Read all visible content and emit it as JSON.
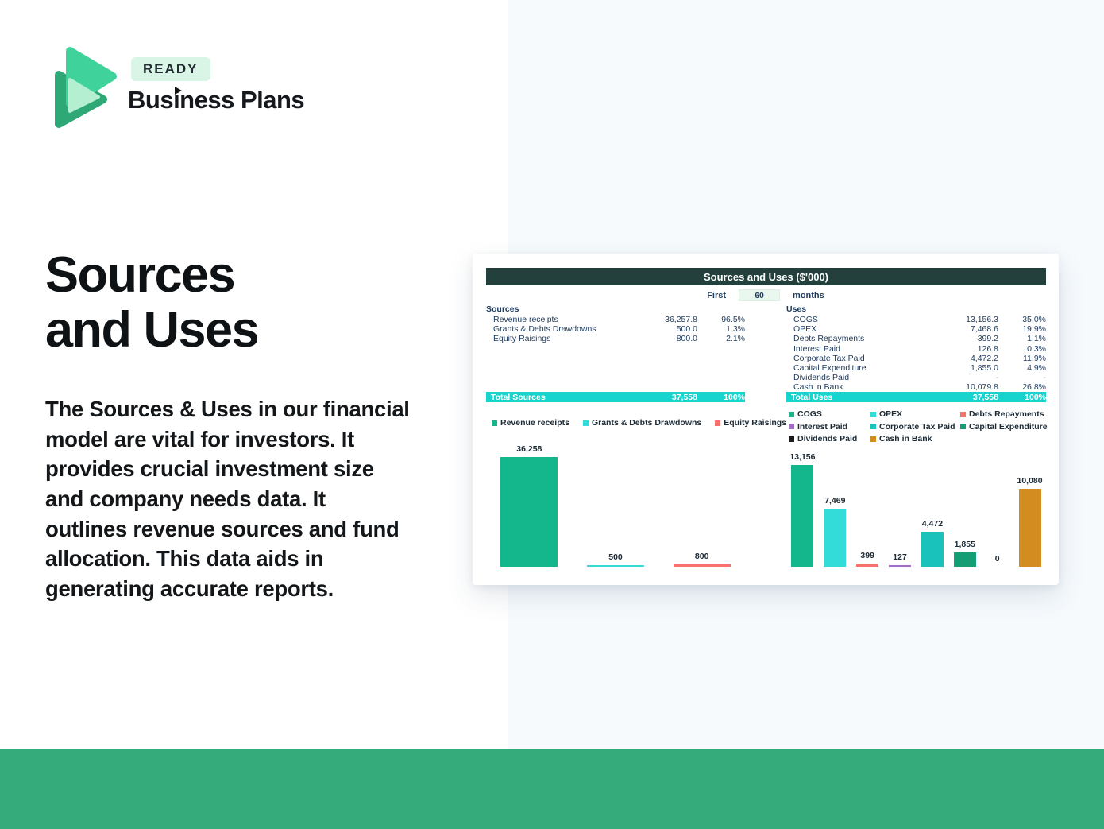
{
  "page": {
    "right_panel_bg": "#f6fafd",
    "bottom_band_color": "#35ab7c"
  },
  "brand": {
    "badge": "READY",
    "name": "Business Plans",
    "logo_colors": {
      "back": "#2fa878",
      "front": "#3fd29a",
      "overlap": "#b5efd2",
      "badge_bg": "#d8f5e6"
    }
  },
  "hero": {
    "title_line1": "Sources",
    "title_line2": "and Uses",
    "description": "The Sources & Uses in our financial model are vital for investors. It provides crucial investment size and company needs data. It outlines revenue sources and fund allocation. This data aids in generating accurate reports."
  },
  "card": {
    "header": "Sources and Uses ($'000)",
    "period": {
      "prefix": "First",
      "value": "60",
      "suffix": "months"
    },
    "accent_total_bg": "#17d4cf",
    "header_bg": "#24403c",
    "sources_table": {
      "title": "Sources",
      "rows": [
        {
          "label": "Revenue receipts",
          "value": "36,257.8",
          "pct": "96.5%"
        },
        {
          "label": "Grants & Debts Drawdowns",
          "value": "500.0",
          "pct": "1.3%"
        },
        {
          "label": "Equity Raisings",
          "value": "800.0",
          "pct": "2.1%"
        }
      ],
      "total": {
        "label": "Total Sources",
        "value": "37,558",
        "pct": "100%"
      }
    },
    "uses_table": {
      "title": "Uses",
      "rows": [
        {
          "label": "COGS",
          "value": "13,156.3",
          "pct": "35.0%"
        },
        {
          "label": "OPEX",
          "value": "7,468.6",
          "pct": "19.9%"
        },
        {
          "label": "Debts Repayments",
          "value": "399.2",
          "pct": "1.1%"
        },
        {
          "label": "Interest Paid",
          "value": "126.8",
          "pct": "0.3%"
        },
        {
          "label": "Corporate Tax Paid",
          "value": "4,472.2",
          "pct": "11.9%"
        },
        {
          "label": "Capital Expenditure",
          "value": "1,855.0",
          "pct": "4.9%"
        },
        {
          "label": "Dividends Paid",
          "value": "-",
          "pct": "-"
        },
        {
          "label": "Cash in Bank",
          "value": "10,079.8",
          "pct": "26.8%"
        }
      ],
      "total": {
        "label": "Total Uses",
        "value": "37,558",
        "pct": "100%"
      }
    }
  },
  "chart_data": [
    {
      "type": "bar",
      "title": "Sources",
      "categories": [
        "Revenue receipts",
        "Grants & Debts Drawdowns",
        "Equity Raisings"
      ],
      "values": [
        36258,
        500,
        800
      ],
      "labels": [
        "36,258",
        "500",
        "800"
      ],
      "colors": [
        "#14b78c",
        "#33dbd9",
        "#f8716d"
      ],
      "ylim": [
        0,
        36258
      ],
      "grid": false,
      "legend_position": "top"
    },
    {
      "type": "bar",
      "title": "Uses",
      "categories": [
        "COGS",
        "OPEX",
        "Debts Repayments",
        "Interest Paid",
        "Corporate Tax Paid",
        "Capital Expenditure",
        "Dividends Paid",
        "Cash in Bank"
      ],
      "values": [
        13156,
        7469,
        399,
        127,
        4472,
        1855,
        0,
        10080
      ],
      "labels": [
        "13,156",
        "7,469",
        "399",
        "127",
        "4,472",
        "1,855",
        "0",
        "10,080"
      ],
      "colors": [
        "#14b78c",
        "#33dbd9",
        "#f8716d",
        "#a56cc9",
        "#19c2bb",
        "#139e74",
        "#1a1a1a",
        "#d28c1f"
      ],
      "ylim": [
        0,
        13156
      ],
      "grid": false,
      "legend_position": "top"
    }
  ]
}
